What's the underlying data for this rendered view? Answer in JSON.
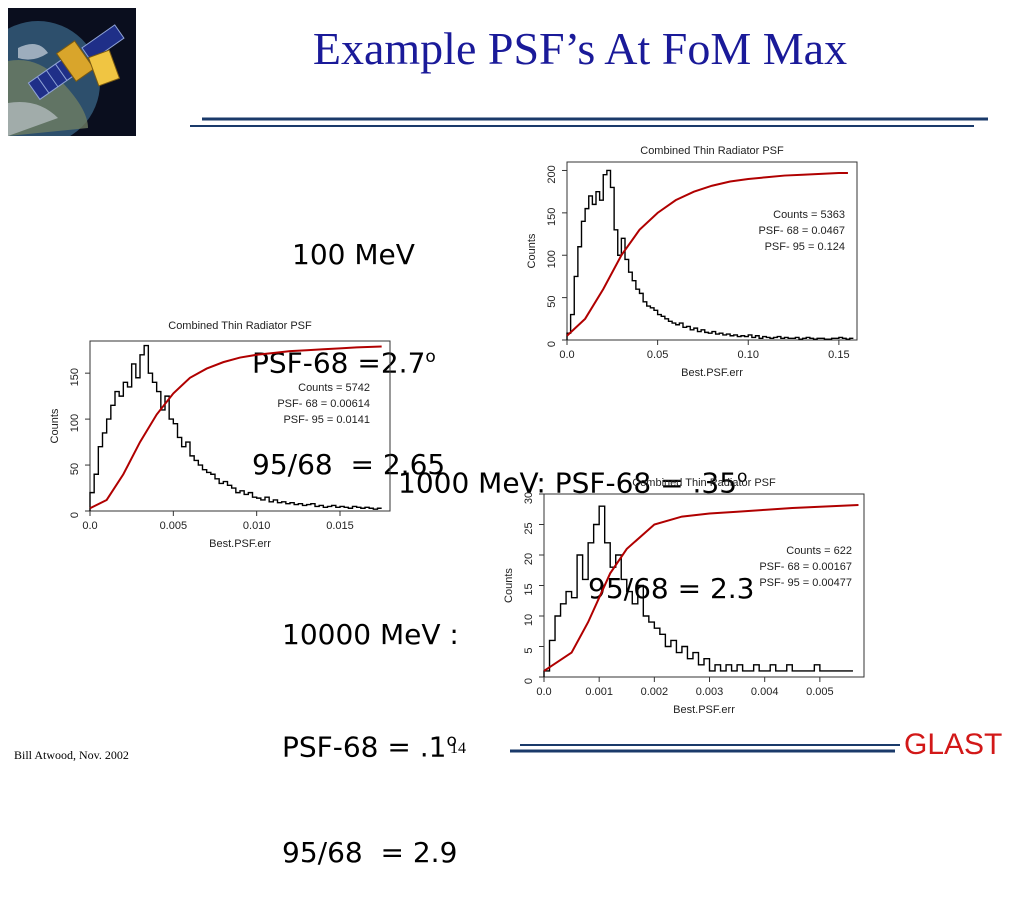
{
  "slide": {
    "title": "Example PSF’s At FoM Max",
    "footer_author": "Bill Atwood,  Nov. 2002",
    "page_number": "14",
    "brand": "GLAST",
    "brand_color": "#d21818",
    "title_color": "#1a1a99"
  },
  "annotations": {
    "a100": {
      "line1": "100 MeV",
      "line2": "PSF-68 =2.7",
      "deg2": "o",
      "line3": "95/68  = 2.65"
    },
    "a1000": {
      "line1": "1000 MeV: PSF-68 = .35",
      "deg1": "o",
      "line2": "95/68 = 2.3"
    },
    "a10000": {
      "line1": "10000 MeV :",
      "line2": "PSF-68 = .1",
      "deg2": "o",
      "line3": "95/68  = 2.9"
    }
  },
  "chart_data": [
    {
      "type": "line",
      "title": "Combined Thin Radiator PSF",
      "xlabel": "Best.PSF.err",
      "ylabel": "Counts",
      "xlim": [
        0,
        0.16
      ],
      "ylim": [
        0,
        210
      ],
      "xticks": [
        "0.0",
        "0.05",
        "0.10",
        "0.15"
      ],
      "xtick_values": [
        0,
        0.05,
        0.1,
        0.15
      ],
      "yticks": [
        "0",
        "50",
        "100",
        "150",
        "200"
      ],
      "ytick_values": [
        0,
        50,
        100,
        150,
        200
      ],
      "stats": [
        "Counts = 5363",
        "PSF- 68 = 0.0467",
        "PSF- 95 = 0.124"
      ],
      "bin_width": 0.002,
      "histogram": [
        8,
        30,
        75,
        110,
        140,
        155,
        170,
        160,
        175,
        165,
        195,
        200,
        180,
        130,
        100,
        120,
        95,
        80,
        70,
        60,
        55,
        45,
        40,
        38,
        35,
        30,
        28,
        25,
        22,
        20,
        18,
        20,
        15,
        16,
        12,
        14,
        10,
        12,
        9,
        8,
        10,
        7,
        8,
        6,
        7,
        5,
        6,
        4,
        5,
        4,
        6,
        3,
        5,
        2,
        4,
        3,
        2,
        3,
        4,
        2,
        3,
        2,
        2,
        3,
        1,
        2,
        3,
        2,
        1,
        2,
        2,
        1,
        1,
        2,
        2,
        3,
        2,
        1,
        2
      ],
      "cdf_x": [
        0.0,
        0.01,
        0.02,
        0.03,
        0.04,
        0.05,
        0.06,
        0.07,
        0.08,
        0.09,
        0.1,
        0.11,
        0.12,
        0.13,
        0.14,
        0.15,
        0.155
      ],
      "cdf_y": [
        5,
        25,
        60,
        100,
        130,
        150,
        165,
        175,
        182,
        187,
        190,
        192,
        194,
        195,
        196,
        197,
        197
      ],
      "hist_color": "#000000",
      "cdf_color": "#b00000"
    },
    {
      "type": "line",
      "title": "Combined Thin Radiator PSF",
      "xlabel": "Best.PSF.err",
      "ylabel": "Counts",
      "xlim": [
        0,
        0.018
      ],
      "ylim": [
        0,
        185
      ],
      "xticks": [
        "0.0",
        "0.005",
        "0.010",
        "0.015"
      ],
      "xtick_values": [
        0,
        0.005,
        0.01,
        0.015
      ],
      "yticks": [
        "0",
        "50",
        "100",
        "150"
      ],
      "ytick_values": [
        0,
        50,
        100,
        150
      ],
      "stats": [
        "Counts = 5742",
        "PSF- 68 = 0.00614",
        "PSF- 95 = 0.0141"
      ],
      "bin_width": 0.00025,
      "histogram": [
        20,
        40,
        70,
        85,
        100,
        115,
        130,
        125,
        140,
        135,
        160,
        145,
        170,
        180,
        150,
        140,
        130,
        110,
        125,
        100,
        95,
        80,
        70,
        75,
        60,
        55,
        50,
        45,
        42,
        40,
        35,
        30,
        32,
        28,
        25,
        20,
        22,
        18,
        20,
        15,
        14,
        12,
        15,
        10,
        12,
        9,
        10,
        8,
        9,
        7,
        8,
        6,
        7,
        8,
        5,
        6,
        4,
        5,
        6,
        4,
        5,
        4,
        3,
        5,
        4,
        3,
        4,
        3,
        2,
        3
      ],
      "cdf_x": [
        0.0,
        0.001,
        0.002,
        0.003,
        0.004,
        0.005,
        0.006,
        0.007,
        0.008,
        0.009,
        0.01,
        0.011,
        0.012,
        0.013,
        0.014,
        0.015,
        0.016,
        0.0175
      ],
      "cdf_y": [
        3,
        12,
        40,
        75,
        105,
        128,
        145,
        155,
        162,
        167,
        170,
        172,
        174,
        175,
        176,
        177,
        178,
        179
      ],
      "hist_color": "#000000",
      "cdf_color": "#b00000"
    },
    {
      "type": "line",
      "title": "Combined Thin Radiator PSF",
      "xlabel": "Best.PSF.err",
      "ylabel": "Counts",
      "xlim": [
        0,
        0.0058
      ],
      "ylim": [
        0,
        30
      ],
      "xticks": [
        "0.0",
        "0.001",
        "0.002",
        "0.003",
        "0.004",
        "0.005"
      ],
      "xtick_values": [
        0,
        0.001,
        0.002,
        0.003,
        0.004,
        0.005
      ],
      "yticks": [
        "0",
        "5",
        "10",
        "15",
        "20",
        "25",
        "30"
      ],
      "ytick_values": [
        0,
        5,
        10,
        15,
        20,
        25,
        30
      ],
      "stats": [
        "Counts = 622",
        "PSF- 68 = 0.00167",
        "PSF- 95 = 0.00477"
      ],
      "bin_width": 0.0001,
      "histogram": [
        1,
        6,
        10,
        12,
        14,
        13,
        20,
        16,
        22,
        25,
        28,
        22,
        18,
        20,
        16,
        14,
        12,
        15,
        10,
        9,
        8,
        7,
        5,
        6,
        4,
        5,
        3,
        4,
        2,
        3,
        1,
        2,
        1,
        2,
        1,
        2,
        1,
        1,
        2,
        1,
        1,
        2,
        1,
        1,
        2,
        1,
        1,
        1,
        1,
        2,
        1,
        1,
        1,
        1,
        1,
        1
      ],
      "cdf_x": [
        0.0,
        0.0005,
        0.0008,
        0.001,
        0.0012,
        0.0015,
        0.002,
        0.0025,
        0.003,
        0.0035,
        0.004,
        0.0045,
        0.005,
        0.0057
      ],
      "cdf_y": [
        1,
        4,
        9,
        13,
        17,
        21,
        25,
        26.3,
        26.8,
        27.1,
        27.4,
        27.7,
        27.9,
        28.2
      ],
      "hist_color": "#000000",
      "cdf_color": "#b00000"
    }
  ]
}
